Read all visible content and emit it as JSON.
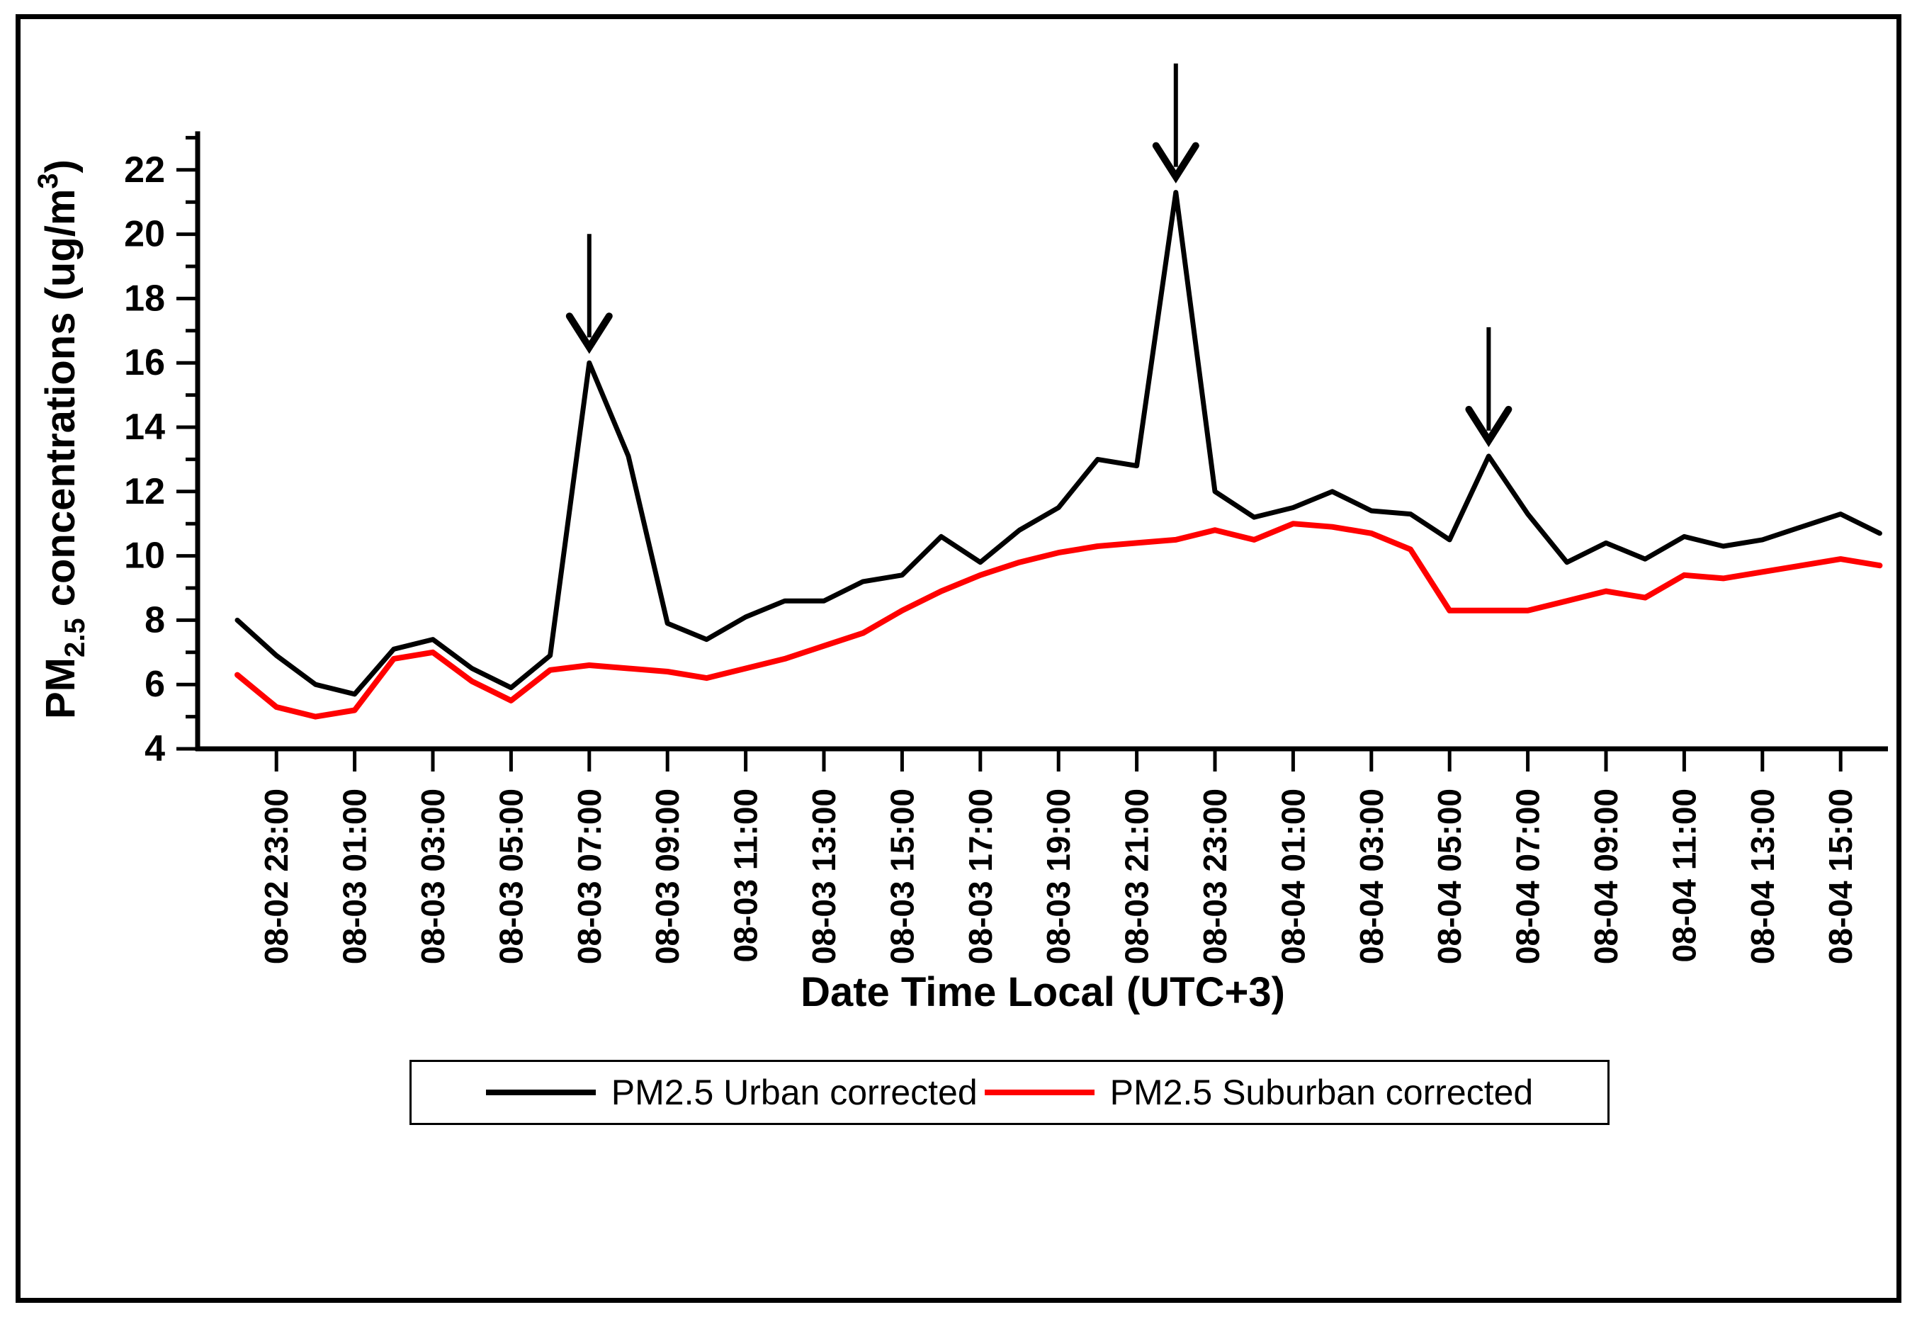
{
  "figure": {
    "x_axis_title": "Date Time Local (UTC+3)",
    "y_axis_title": {
      "prefix": "PM",
      "subscript": "2.5",
      "middle": " concentrations (ug/m",
      "superscript": "3",
      "suffix": ")"
    },
    "y_tick_labels": [
      "4",
      "6",
      "8",
      "10",
      "12",
      "14",
      "16",
      "18",
      "20",
      "22"
    ],
    "x_tick_labels": [
      "08-02 23:00",
      "08-03 01:00",
      "08-03 03:00",
      "08-03 05:00",
      "08-03 07:00",
      "08-03 09:00",
      "08-03 11:00",
      "08-03 13:00",
      "08-03 15:00",
      "08-03 17:00",
      "08-03 19:00",
      "08-03 21:00",
      "08-03 23:00",
      "08-04 01:00",
      "08-04 03:00",
      "08-04 05:00",
      "08-04 07:00",
      "08-04 09:00",
      "08-04 11:00",
      "08-04 13:00",
      "08-04 15:00"
    ],
    "legend": {
      "urban_label": "PM2.5 Urban corrected",
      "suburban_label": "PM2.5 Suburban corrected"
    },
    "colors": {
      "urban": "#000000",
      "suburban": "#ff0000",
      "axis": "#000000"
    }
  },
  "chart_data": {
    "type": "line",
    "title": "",
    "xlabel": "Date Time Local (UTC+3)",
    "ylabel": "PM2.5 concentrations (ug/m3)",
    "ylim": [
      4,
      23.2
    ],
    "y_major_ticks": [
      4,
      6,
      8,
      10,
      12,
      14,
      16,
      18,
      20,
      22
    ],
    "y_minor_ticks": [
      5,
      7,
      9,
      11,
      13,
      15,
      17,
      19,
      21,
      23
    ],
    "grid": false,
    "legend_position": "bottom-center",
    "x": [
      "08-02 22:00",
      "08-02 23:00",
      "08-03 00:00",
      "08-03 01:00",
      "08-03 02:00",
      "08-03 03:00",
      "08-03 04:00",
      "08-03 05:00",
      "08-03 06:00",
      "08-03 07:00",
      "08-03 08:00",
      "08-03 09:00",
      "08-03 10:00",
      "08-03 11:00",
      "08-03 12:00",
      "08-03 13:00",
      "08-03 14:00",
      "08-03 15:00",
      "08-03 16:00",
      "08-03 17:00",
      "08-03 18:00",
      "08-03 19:00",
      "08-03 20:00",
      "08-03 21:00",
      "08-03 22:00",
      "08-03 23:00",
      "08-04 00:00",
      "08-04 01:00",
      "08-04 02:00",
      "08-04 03:00",
      "08-04 04:00",
      "08-04 05:00",
      "08-04 06:00",
      "08-04 07:00",
      "08-04 08:00",
      "08-04 09:00",
      "08-04 10:00",
      "08-04 11:00",
      "08-04 12:00",
      "08-04 13:00",
      "08-04 14:00",
      "08-04 15:00",
      "08-04 16:00"
    ],
    "x_tick_every_hours": 2,
    "series": [
      {
        "name": "PM2.5 Urban corrected",
        "color": "#000000",
        "values": [
          8.0,
          6.9,
          6.0,
          5.7,
          7.1,
          7.4,
          6.5,
          5.9,
          6.9,
          16.0,
          13.1,
          7.9,
          7.4,
          8.1,
          8.6,
          8.6,
          9.2,
          9.4,
          10.6,
          9.8,
          10.8,
          11.5,
          13.0,
          12.8,
          21.3,
          12.0,
          11.2,
          11.5,
          12.0,
          11.4,
          11.3,
          10.5,
          13.1,
          11.3,
          9.8,
          10.4,
          9.9,
          10.6,
          10.3,
          10.5,
          10.9,
          11.3,
          10.7
        ]
      },
      {
        "name": "PM2.5 Suburban corrected",
        "color": "#ff0000",
        "values": [
          6.3,
          5.3,
          5.0,
          5.2,
          6.8,
          7.0,
          6.1,
          5.5,
          6.45,
          6.6,
          6.5,
          6.4,
          6.2,
          6.5,
          6.8,
          7.2,
          7.6,
          8.3,
          8.9,
          9.4,
          9.8,
          10.1,
          10.3,
          10.4,
          10.5,
          10.8,
          10.5,
          11.0,
          10.9,
          10.7,
          10.2,
          8.3,
          8.3,
          8.3,
          8.6,
          8.9,
          8.7,
          9.4,
          9.3,
          9.5,
          9.7,
          9.9,
          9.7
        ]
      }
    ],
    "annotations": {
      "arrow_marker": "down-arrow",
      "arrow_point_indices": [
        9,
        24,
        32
      ],
      "arrow_peak_values": [
        16.0,
        21.3,
        13.1
      ]
    }
  }
}
